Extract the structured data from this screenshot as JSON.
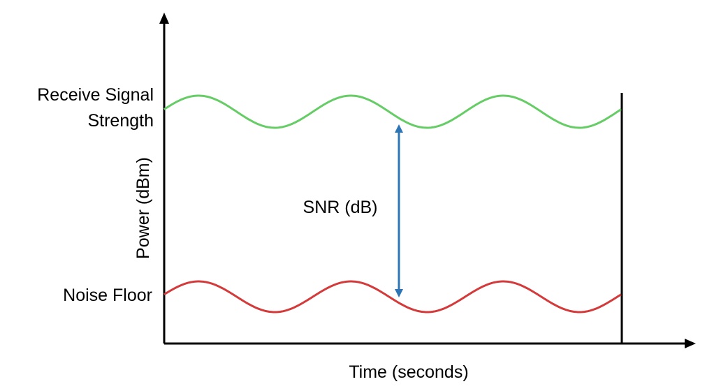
{
  "labels": {
    "signal_line1": "Receive Signal",
    "signal_line2": "Strength",
    "noise_floor": "Noise Floor",
    "snr": "SNR (dB)",
    "y_axis": "Power (dBm)",
    "x_axis": "Time (seconds)"
  },
  "colors": {
    "signal": "#66cc66",
    "noise": "#d43a3a",
    "snr_arrow": "#2e75b6",
    "axis": "#000000"
  }
}
